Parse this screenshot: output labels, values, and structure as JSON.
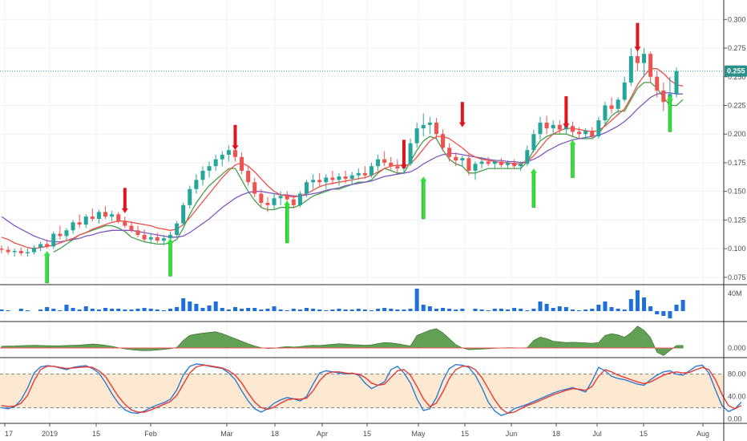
{
  "colors": {
    "up": "#26a69a",
    "down": "#ef5350",
    "ma_fast": "#f0504a",
    "ma_slow": "#7e57c2",
    "trail": "#43a047",
    "volume": "#1e6fd9",
    "oscillator_fill": "#5a9b4d",
    "stoch_k": "#2f7bd0",
    "stoch_d": "#e53935",
    "stoch_band": "#fde9d2",
    "sell_arrow": "#e0141e",
    "buy_arrow": "#34e03a",
    "last_price_line": "#3aa0a0",
    "grid": "#eef0f3"
  },
  "chart_data": {
    "type": "candlestick",
    "last_price": "0.255",
    "x_tick_labels": [
      "17",
      "2019",
      "15",
      "Feb",
      "Mar",
      "18",
      "Apr",
      "15",
      "May",
      "15",
      "Jun",
      "18",
      "Jul",
      "15",
      "Aug"
    ],
    "price_axis": {
      "ticks": [
        "0.300",
        "0.275",
        "0.250",
        "0.225",
        "0.200",
        "0.175",
        "0.150",
        "0.125",
        "0.100",
        "0.075"
      ],
      "ylim": [
        0.07,
        0.31
      ]
    },
    "volume_axis": {
      "tick_label": "40M"
    },
    "oscillator_axis": {
      "tick_label": "0.000"
    },
    "stochastic_axis": {
      "ticks": [
        "80.00",
        "40.00",
        "0.00"
      ],
      "ylim": [
        -8,
        108
      ],
      "band": [
        20,
        80
      ]
    },
    "candles": [
      [
        0.1,
        0.103,
        0.096,
        0.099
      ],
      [
        0.099,
        0.102,
        0.095,
        0.097
      ],
      [
        0.097,
        0.1,
        0.093,
        0.098
      ],
      [
        0.098,
        0.101,
        0.094,
        0.096
      ],
      [
        0.096,
        0.1,
        0.093,
        0.097
      ],
      [
        0.097,
        0.103,
        0.095,
        0.101
      ],
      [
        0.101,
        0.106,
        0.098,
        0.104
      ],
      [
        0.104,
        0.108,
        0.1,
        0.102
      ],
      [
        0.102,
        0.115,
        0.1,
        0.113
      ],
      [
        0.113,
        0.12,
        0.108,
        0.111
      ],
      [
        0.111,
        0.118,
        0.107,
        0.116
      ],
      [
        0.116,
        0.125,
        0.113,
        0.123
      ],
      [
        0.123,
        0.13,
        0.118,
        0.121
      ],
      [
        0.121,
        0.13,
        0.118,
        0.128
      ],
      [
        0.128,
        0.135,
        0.124,
        0.126
      ],
      [
        0.126,
        0.134,
        0.122,
        0.132
      ],
      [
        0.132,
        0.137,
        0.126,
        0.128
      ],
      [
        0.128,
        0.133,
        0.124,
        0.13
      ],
      [
        0.13,
        0.132,
        0.122,
        0.124
      ],
      [
        0.124,
        0.128,
        0.118,
        0.12
      ],
      [
        0.12,
        0.124,
        0.114,
        0.116
      ],
      [
        0.116,
        0.12,
        0.11,
        0.112
      ],
      [
        0.112,
        0.117,
        0.106,
        0.108
      ],
      [
        0.108,
        0.113,
        0.104,
        0.11
      ],
      [
        0.11,
        0.114,
        0.105,
        0.107
      ],
      [
        0.107,
        0.112,
        0.103,
        0.109
      ],
      [
        0.109,
        0.115,
        0.105,
        0.112
      ],
      [
        0.112,
        0.124,
        0.11,
        0.122
      ],
      [
        0.122,
        0.14,
        0.12,
        0.138
      ],
      [
        0.138,
        0.155,
        0.135,
        0.152
      ],
      [
        0.152,
        0.165,
        0.148,
        0.16
      ],
      [
        0.16,
        0.172,
        0.155,
        0.168
      ],
      [
        0.168,
        0.176,
        0.162,
        0.172
      ],
      [
        0.172,
        0.182,
        0.168,
        0.178
      ],
      [
        0.178,
        0.185,
        0.172,
        0.182
      ],
      [
        0.182,
        0.19,
        0.176,
        0.186
      ],
      [
        0.186,
        0.19,
        0.176,
        0.18
      ],
      [
        0.18,
        0.184,
        0.165,
        0.168
      ],
      [
        0.168,
        0.172,
        0.155,
        0.158
      ],
      [
        0.158,
        0.162,
        0.145,
        0.148
      ],
      [
        0.148,
        0.152,
        0.136,
        0.14
      ],
      [
        0.14,
        0.145,
        0.132,
        0.138
      ],
      [
        0.138,
        0.148,
        0.134,
        0.144
      ],
      [
        0.144,
        0.15,
        0.138,
        0.146
      ],
      [
        0.146,
        0.15,
        0.14,
        0.143
      ],
      [
        0.143,
        0.147,
        0.135,
        0.138
      ],
      [
        0.138,
        0.15,
        0.136,
        0.148
      ],
      [
        0.148,
        0.16,
        0.145,
        0.158
      ],
      [
        0.158,
        0.165,
        0.152,
        0.16
      ],
      [
        0.16,
        0.166,
        0.154,
        0.158
      ],
      [
        0.158,
        0.165,
        0.152,
        0.162
      ],
      [
        0.162,
        0.168,
        0.156,
        0.16
      ],
      [
        0.16,
        0.166,
        0.155,
        0.163
      ],
      [
        0.163,
        0.168,
        0.157,
        0.161
      ],
      [
        0.161,
        0.167,
        0.156,
        0.164
      ],
      [
        0.164,
        0.17,
        0.16,
        0.166
      ],
      [
        0.166,
        0.172,
        0.161,
        0.164
      ],
      [
        0.164,
        0.175,
        0.162,
        0.172
      ],
      [
        0.172,
        0.182,
        0.168,
        0.178
      ],
      [
        0.178,
        0.185,
        0.172,
        0.175
      ],
      [
        0.175,
        0.18,
        0.168,
        0.172
      ],
      [
        0.172,
        0.178,
        0.166,
        0.17
      ],
      [
        0.17,
        0.176,
        0.165,
        0.174
      ],
      [
        0.174,
        0.196,
        0.172,
        0.192
      ],
      [
        0.192,
        0.21,
        0.188,
        0.205
      ],
      [
        0.205,
        0.218,
        0.198,
        0.208
      ],
      [
        0.208,
        0.215,
        0.2,
        0.21
      ],
      [
        0.21,
        0.214,
        0.196,
        0.2
      ],
      [
        0.2,
        0.204,
        0.185,
        0.188
      ],
      [
        0.188,
        0.192,
        0.176,
        0.18
      ],
      [
        0.18,
        0.184,
        0.172,
        0.177
      ],
      [
        0.177,
        0.181,
        0.172,
        0.179
      ],
      [
        0.179,
        0.183,
        0.164,
        0.168
      ],
      [
        0.168,
        0.176,
        0.16,
        0.174
      ],
      [
        0.174,
        0.18,
        0.17,
        0.176
      ],
      [
        0.176,
        0.18,
        0.172,
        0.174
      ],
      [
        0.174,
        0.178,
        0.17,
        0.176
      ],
      [
        0.176,
        0.179,
        0.171,
        0.173
      ],
      [
        0.173,
        0.177,
        0.17,
        0.175
      ],
      [
        0.175,
        0.178,
        0.17,
        0.172
      ],
      [
        0.172,
        0.176,
        0.168,
        0.174
      ],
      [
        0.174,
        0.19,
        0.172,
        0.186
      ],
      [
        0.186,
        0.204,
        0.184,
        0.2
      ],
      [
        0.2,
        0.215,
        0.195,
        0.21
      ],
      [
        0.21,
        0.216,
        0.2,
        0.205
      ],
      [
        0.205,
        0.212,
        0.2,
        0.208
      ],
      [
        0.208,
        0.212,
        0.2,
        0.204
      ],
      [
        0.204,
        0.21,
        0.2,
        0.207
      ],
      [
        0.207,
        0.211,
        0.198,
        0.202
      ],
      [
        0.202,
        0.206,
        0.196,
        0.2
      ],
      [
        0.2,
        0.205,
        0.196,
        0.203
      ],
      [
        0.203,
        0.206,
        0.196,
        0.198
      ],
      [
        0.198,
        0.215,
        0.196,
        0.212
      ],
      [
        0.212,
        0.228,
        0.208,
        0.225
      ],
      [
        0.225,
        0.232,
        0.218,
        0.222
      ],
      [
        0.222,
        0.232,
        0.218,
        0.23
      ],
      [
        0.23,
        0.25,
        0.228,
        0.245
      ],
      [
        0.245,
        0.275,
        0.242,
        0.268
      ],
      [
        0.268,
        0.29,
        0.255,
        0.262
      ],
      [
        0.262,
        0.275,
        0.25,
        0.27
      ],
      [
        0.27,
        0.272,
        0.245,
        0.25
      ],
      [
        0.25,
        0.255,
        0.232,
        0.238
      ],
      [
        0.238,
        0.245,
        0.22,
        0.228
      ],
      [
        0.228,
        0.25,
        0.225,
        0.235
      ],
      [
        0.235,
        0.258,
        0.232,
        0.255
      ]
    ],
    "ma_fast": [
      0.11,
      0.108,
      0.105,
      0.103,
      0.101,
      0.1,
      0.101,
      0.102,
      0.103,
      0.105,
      0.107,
      0.109,
      0.112,
      0.114,
      0.117,
      0.119,
      0.121,
      0.123,
      0.124,
      0.124,
      0.123,
      0.122,
      0.121,
      0.12,
      0.118,
      0.117,
      0.116,
      0.117,
      0.121,
      0.127,
      0.134,
      0.141,
      0.148,
      0.155,
      0.162,
      0.168,
      0.173,
      0.175,
      0.172,
      0.167,
      0.161,
      0.155,
      0.15,
      0.147,
      0.146,
      0.145,
      0.146,
      0.148,
      0.151,
      0.154,
      0.156,
      0.157,
      0.158,
      0.159,
      0.16,
      0.161,
      0.162,
      0.164,
      0.167,
      0.17,
      0.172,
      0.173,
      0.172,
      0.174,
      0.18,
      0.187,
      0.194,
      0.198,
      0.198,
      0.196,
      0.192,
      0.188,
      0.183,
      0.18,
      0.178,
      0.177,
      0.176,
      0.175,
      0.175,
      0.174,
      0.174,
      0.176,
      0.181,
      0.188,
      0.195,
      0.2,
      0.203,
      0.205,
      0.205,
      0.204,
      0.203,
      0.202,
      0.203,
      0.207,
      0.212,
      0.217,
      0.222,
      0.232,
      0.243,
      0.251,
      0.257,
      0.257,
      0.253,
      0.247,
      0.243,
      0.242
    ],
    "ma_slow": [
      0.128,
      0.124,
      0.12,
      0.117,
      0.114,
      0.111,
      0.109,
      0.107,
      0.106,
      0.106,
      0.107,
      0.108,
      0.109,
      0.111,
      0.112,
      0.114,
      0.115,
      0.116,
      0.116,
      0.116,
      0.116,
      0.115,
      0.114,
      0.113,
      0.112,
      0.111,
      0.11,
      0.11,
      0.111,
      0.114,
      0.118,
      0.122,
      0.126,
      0.131,
      0.136,
      0.14,
      0.144,
      0.147,
      0.149,
      0.15,
      0.15,
      0.149,
      0.148,
      0.147,
      0.147,
      0.146,
      0.146,
      0.147,
      0.148,
      0.149,
      0.151,
      0.152,
      0.153,
      0.155,
      0.156,
      0.157,
      0.158,
      0.159,
      0.161,
      0.163,
      0.164,
      0.165,
      0.166,
      0.167,
      0.17,
      0.174,
      0.177,
      0.18,
      0.182,
      0.183,
      0.183,
      0.182,
      0.181,
      0.18,
      0.179,
      0.178,
      0.177,
      0.177,
      0.176,
      0.176,
      0.175,
      0.176,
      0.178,
      0.181,
      0.185,
      0.188,
      0.191,
      0.193,
      0.195,
      0.196,
      0.197,
      0.198,
      0.199,
      0.201,
      0.204,
      0.207,
      0.211,
      0.216,
      0.222,
      0.227,
      0.232,
      0.235,
      0.236,
      0.236,
      0.235,
      0.235
    ],
    "trail_stop": [
      null,
      null,
      null,
      null,
      null,
      null,
      null,
      null,
      0.097,
      0.1,
      0.104,
      0.108,
      0.112,
      0.114,
      0.116,
      0.118,
      0.12,
      0.12,
      0.118,
      0.115,
      0.11,
      0.108,
      0.106,
      0.105,
      0.104,
      0.104,
      0.105,
      0.108,
      0.118,
      0.13,
      0.14,
      0.148,
      0.155,
      0.16,
      0.165,
      0.17,
      0.17,
      0.16,
      0.15,
      0.142,
      0.136,
      0.134,
      0.134,
      0.136,
      0.136,
      0.136,
      0.138,
      0.142,
      0.146,
      0.148,
      0.15,
      0.152,
      0.152,
      0.154,
      0.156,
      0.158,
      0.158,
      0.16,
      0.166,
      0.17,
      0.168,
      0.166,
      0.166,
      0.176,
      0.186,
      0.194,
      0.198,
      0.196,
      0.186,
      0.178,
      0.174,
      0.172,
      0.166,
      0.166,
      0.168,
      0.17,
      0.17,
      0.17,
      0.17,
      0.17,
      0.17,
      0.176,
      0.186,
      0.194,
      0.198,
      0.2,
      0.2,
      0.2,
      0.198,
      0.196,
      0.196,
      0.196,
      0.2,
      0.208,
      0.216,
      0.22,
      0.22,
      0.23,
      0.24,
      0.245,
      0.245,
      0.24,
      0.232,
      0.225,
      0.225,
      0.23
    ],
    "volume": [
      2,
      1,
      0,
      3,
      1,
      0,
      2,
      5,
      3,
      1,
      8,
      4,
      2,
      6,
      3,
      2,
      4,
      3,
      3,
      2,
      2,
      3,
      4,
      3,
      2,
      1,
      3,
      5,
      16,
      12,
      9,
      4,
      7,
      12,
      4,
      2,
      5,
      3,
      4,
      4,
      2,
      3,
      6,
      2,
      1,
      3,
      2,
      4,
      3,
      2,
      1,
      2,
      3,
      2,
      2,
      3,
      2,
      1,
      3,
      4,
      3,
      2,
      2,
      3,
      28,
      8,
      6,
      3,
      4,
      3,
      2,
      3,
      0,
      3,
      2,
      1,
      3,
      3,
      2,
      4,
      3,
      1,
      3,
      12,
      9,
      4,
      6,
      5,
      2,
      1,
      2,
      3,
      8,
      12,
      5,
      3,
      2,
      15,
      26,
      17,
      6,
      -4,
      -6,
      -9,
      8,
      14
    ],
    "oscillator": [
      1.0,
      1.1,
      1.2,
      1.4,
      1.5,
      1.6,
      1.5,
      1.4,
      1.3,
      1.3,
      1.5,
      1.6,
      1.7,
      2.0,
      2.3,
      2.1,
      1.6,
      1.0,
      0.2,
      -0.5,
      -1.0,
      -1.4,
      -1.6,
      -1.5,
      -1.2,
      -0.8,
      -0.4,
      0.3,
      4.5,
      7.5,
      8.3,
      8.8,
      9.2,
      9.6,
      8.5,
      7.0,
      5.5,
      4.0,
      2.5,
      1.2,
      0.2,
      -0.3,
      -0.2,
      0.4,
      0.8,
      0.5,
      0.8,
      1.3,
      1.6,
      1.5,
      1.8,
      2.2,
      2.5,
      2.3,
      2.0,
      1.8,
      1.6,
      1.8,
      2.6,
      3.2,
      3.0,
      2.5,
      1.8,
      1.2,
      7.5,
      9.0,
      10.5,
      11.5,
      9.0,
      5.5,
      2.0,
      0.0,
      -1.0,
      -0.8,
      -0.6,
      -0.4,
      -0.2,
      0.0,
      0.2,
      0.1,
      0.0,
      0.2,
      4.5,
      6.5,
      5.5,
      4.0,
      3.6,
      3.2,
      3.4,
      3.2,
      3.0,
      2.8,
      3.2,
      7.5,
      8.5,
      7.8,
      6.4,
      9.0,
      13.0,
      10.5,
      6.2,
      -2.5,
      -4.5,
      -1.5,
      1.5,
      1.5
    ],
    "stoch_k": [
      20,
      18,
      22,
      34,
      55,
      82,
      93,
      95,
      94,
      91,
      88,
      92,
      94,
      95,
      90,
      82,
      65,
      45,
      28,
      16,
      11,
      10,
      14,
      20,
      25,
      29,
      35,
      52,
      78,
      94,
      98,
      97,
      94,
      92,
      90,
      82,
      70,
      50,
      32,
      18,
      12,
      18,
      28,
      34,
      38,
      36,
      32,
      40,
      62,
      82,
      86,
      84,
      82,
      80,
      82,
      78,
      64,
      54,
      60,
      66,
      88,
      94,
      82,
      64,
      36,
      15,
      18,
      38,
      68,
      90,
      97,
      96,
      92,
      78,
      56,
      30,
      14,
      6,
      10,
      18,
      22,
      26,
      31,
      36,
      41,
      46,
      50,
      53,
      56,
      52,
      48,
      68,
      92,
      86,
      76,
      72,
      70,
      66,
      62,
      60,
      70,
      78,
      84,
      86,
      80,
      78,
      86,
      94,
      96,
      82,
      52,
      24,
      13,
      18,
      30
    ],
    "stoch_d": [
      24,
      22,
      23,
      28,
      42,
      68,
      88,
      94,
      94,
      92,
      90,
      91,
      92,
      93,
      92,
      86,
      76,
      58,
      40,
      26,
      16,
      12,
      12,
      16,
      21,
      26,
      31,
      42,
      62,
      82,
      93,
      96,
      95,
      93,
      91,
      86,
      78,
      64,
      46,
      30,
      20,
      17,
      21,
      28,
      34,
      36,
      35,
      37,
      50,
      68,
      80,
      84,
      84,
      82,
      81,
      80,
      74,
      64,
      60,
      62,
      74,
      86,
      88,
      78,
      58,
      36,
      22,
      28,
      48,
      72,
      88,
      94,
      94,
      88,
      74,
      54,
      34,
      18,
      10,
      12,
      18,
      24,
      28,
      33,
      38,
      43,
      47,
      51,
      54,
      53,
      51,
      58,
      76,
      88,
      84,
      78,
      74,
      70,
      66,
      63,
      66,
      72,
      78,
      82,
      84,
      82,
      83,
      88,
      92,
      88,
      70,
      44,
      24,
      18,
      24
    ],
    "sell_signals": [
      {
        "i": 19,
        "top": 0.153,
        "bottom": 0.131
      },
      {
        "i": 36,
        "top": 0.208,
        "bottom": 0.186
      },
      {
        "i": 62,
        "top": 0.195,
        "bottom": 0.169
      },
      {
        "i": 71,
        "top": 0.228,
        "bottom": 0.206
      },
      {
        "i": 87,
        "top": 0.233,
        "bottom": 0.205
      },
      {
        "i": 98,
        "top": 0.297,
        "bottom": 0.272
      }
    ],
    "buy_signals": [
      {
        "i": 7,
        "top": 0.098,
        "bottom": 0.07
      },
      {
        "i": 26,
        "top": 0.109,
        "bottom": 0.076
      },
      {
        "i": 44,
        "top": 0.142,
        "bottom": 0.105
      },
      {
        "i": 65,
        "top": 0.163,
        "bottom": 0.126
      },
      {
        "i": 82,
        "top": 0.17,
        "bottom": 0.136
      },
      {
        "i": 88,
        "top": 0.195,
        "bottom": 0.162
      },
      {
        "i": 103,
        "top": 0.234,
        "bottom": 0.202
      }
    ]
  }
}
